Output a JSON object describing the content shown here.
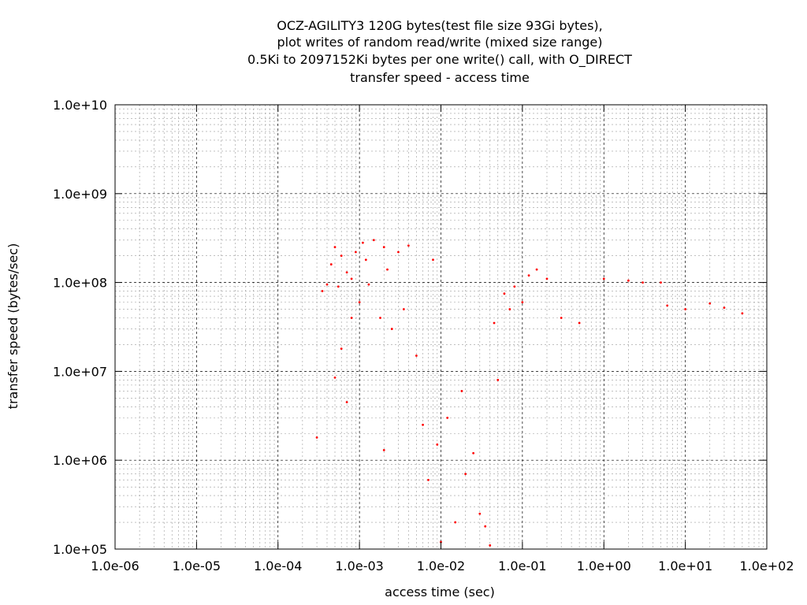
{
  "chart_data": {
    "type": "scatter",
    "title_lines": [
      "OCZ-AGILITY3 120G bytes(test file size 93Gi bytes),",
      "plot writes of random read/write (mixed size range)",
      "0.5Ki to 2097152Ki bytes per one write() call, with O_DIRECT",
      "transfer speed - access time"
    ],
    "xlabel": "access time (sec)",
    "ylabel": "transfer speed (bytes/sec)",
    "x_scale": "log",
    "y_scale": "log",
    "xlim": [
      1e-06,
      100
    ],
    "ylim": [
      100000,
      10000000000
    ],
    "x_ticks": [
      {
        "value": 1e-06,
        "label": "1.0e-06"
      },
      {
        "value": 1e-05,
        "label": "1.0e-05"
      },
      {
        "value": 0.0001,
        "label": "1.0e-04"
      },
      {
        "value": 0.001,
        "label": "1.0e-03"
      },
      {
        "value": 0.01,
        "label": "1.0e-02"
      },
      {
        "value": 0.1,
        "label": "1.0e-01"
      },
      {
        "value": 1,
        "label": "1.0e+00"
      },
      {
        "value": 10,
        "label": "1.0e+01"
      },
      {
        "value": 100,
        "label": "1.0e+02"
      }
    ],
    "y_ticks": [
      {
        "value": 100000,
        "label": "1.0e+05"
      },
      {
        "value": 1000000,
        "label": "1.0e+06"
      },
      {
        "value": 10000000,
        "label": "1.0e+07"
      },
      {
        "value": 100000000,
        "label": "1.0e+08"
      },
      {
        "value": 1000000000,
        "label": "1.0e+09"
      },
      {
        "value": 10000000000,
        "label": "1.0e+10"
      }
    ],
    "grid": true,
    "minor_grid": true,
    "series": [
      {
        "color": "#ff0000",
        "points": [
          [
            0.0003,
            1800000
          ],
          [
            0.00035,
            80000000
          ],
          [
            0.0004,
            95000000
          ],
          [
            0.00045,
            160000000
          ],
          [
            0.0005,
            8500000
          ],
          [
            0.0005,
            250000000
          ],
          [
            0.00055,
            90000000
          ],
          [
            0.0006,
            18000000
          ],
          [
            0.0006,
            200000000
          ],
          [
            0.0007,
            4500000
          ],
          [
            0.0007,
            130000000
          ],
          [
            0.0008,
            40000000
          ],
          [
            0.0008,
            110000000
          ],
          [
            0.0009,
            220000000
          ],
          [
            0.001,
            60000000
          ],
          [
            0.0011,
            280000000
          ],
          [
            0.0012,
            180000000
          ],
          [
            0.0013,
            95000000
          ],
          [
            0.0015,
            300000000
          ],
          [
            0.0018,
            40000000
          ],
          [
            0.002,
            1300000
          ],
          [
            0.002,
            250000000
          ],
          [
            0.0022,
            140000000
          ],
          [
            0.0025,
            30000000
          ],
          [
            0.003,
            220000000
          ],
          [
            0.0035,
            50000000
          ],
          [
            0.004,
            260000000
          ],
          [
            0.005,
            15000000
          ],
          [
            0.006,
            2500000
          ],
          [
            0.007,
            600000
          ],
          [
            0.008,
            180000000
          ],
          [
            0.009,
            1500000
          ],
          [
            0.01,
            120000
          ],
          [
            0.012,
            3000000
          ],
          [
            0.015,
            200000
          ],
          [
            0.018,
            6000000
          ],
          [
            0.02,
            700000
          ],
          [
            0.025,
            1200000
          ],
          [
            0.03,
            250000
          ],
          [
            0.035,
            180000
          ],
          [
            0.04,
            110000
          ],
          [
            0.045,
            35000000
          ],
          [
            0.05,
            8000000
          ],
          [
            0.06,
            75000000
          ],
          [
            0.07,
            50000000
          ],
          [
            0.08,
            90000000
          ],
          [
            0.1,
            60000000
          ],
          [
            0.12,
            120000000
          ],
          [
            0.15,
            140000000
          ],
          [
            0.2,
            110000000
          ],
          [
            0.3,
            40000000
          ],
          [
            0.5,
            35000000
          ],
          [
            1,
            110000000
          ],
          [
            2,
            105000000
          ],
          [
            3,
            100000000
          ],
          [
            5,
            100000000
          ],
          [
            6,
            55000000
          ],
          [
            10,
            50000000
          ],
          [
            20,
            58000000
          ],
          [
            30,
            52000000
          ],
          [
            50,
            45000000
          ]
        ]
      }
    ]
  }
}
